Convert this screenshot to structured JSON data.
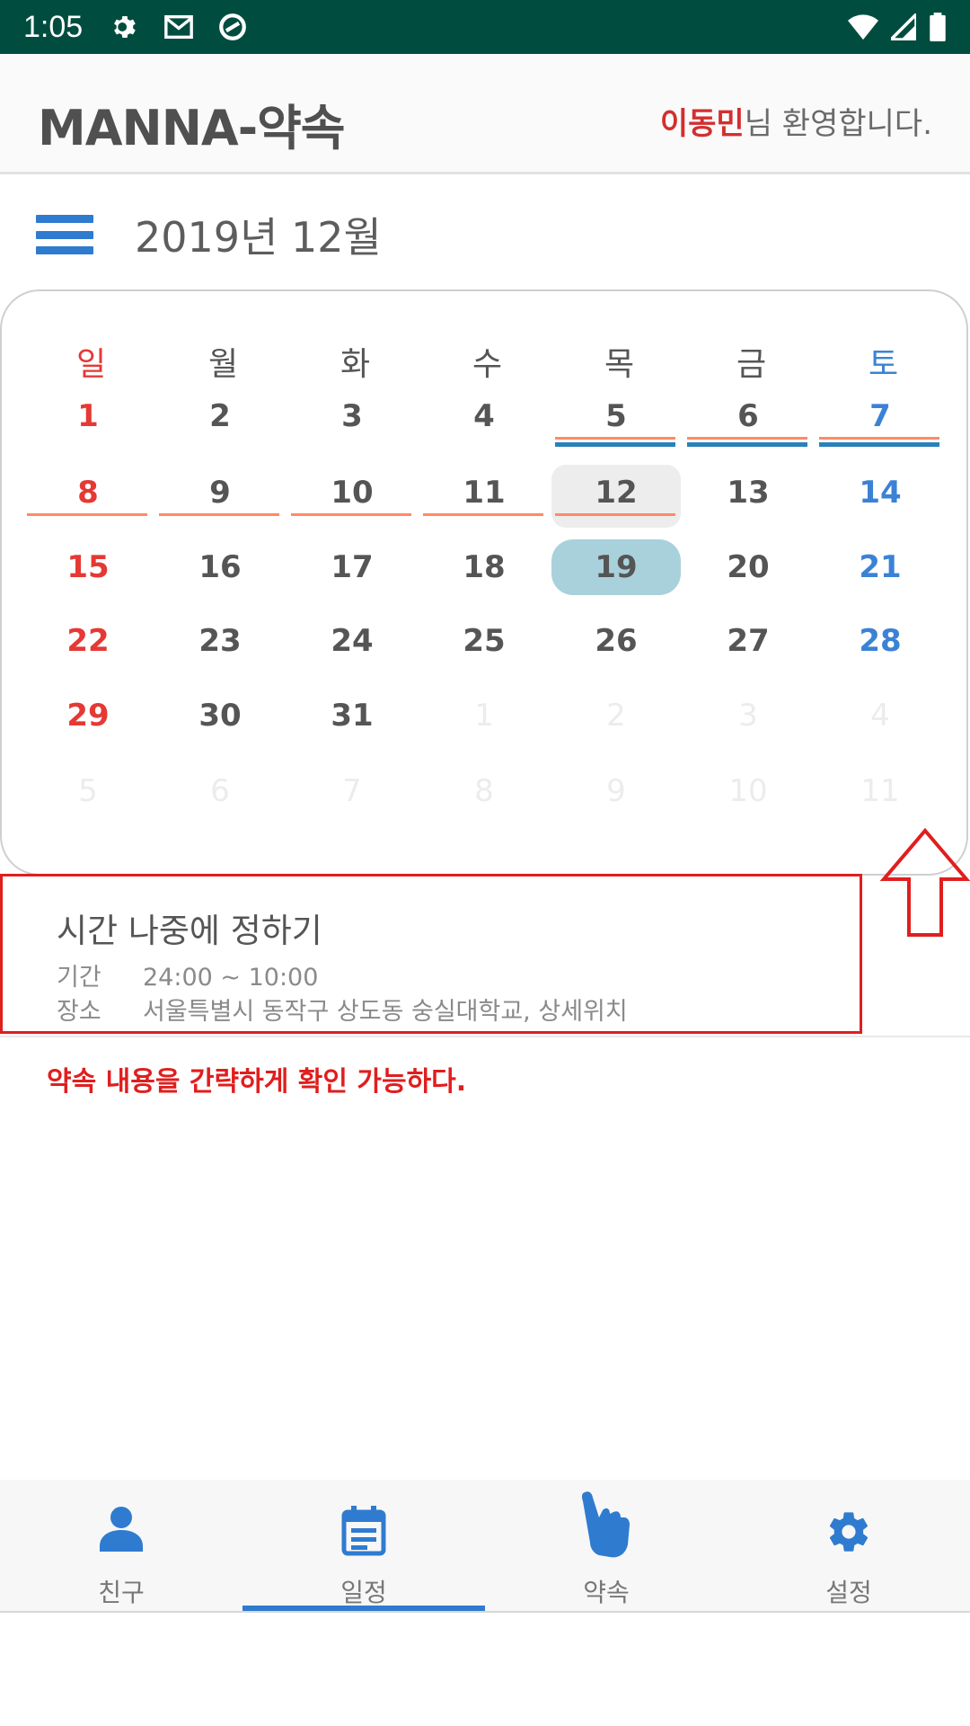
{
  "status_bar": {
    "time": "1:05"
  },
  "app_bar": {
    "title": "MANNA-약속",
    "user_name": "이동민",
    "welcome_suffix": "님 환영합니다."
  },
  "calendar": {
    "month_label": "2019년 12월",
    "weekdays": [
      "일",
      "월",
      "화",
      "수",
      "목",
      "금",
      "토"
    ],
    "weeks": [
      [
        "1",
        "2",
        "3",
        "4",
        "5",
        "6",
        "7"
      ],
      [
        "8",
        "9",
        "10",
        "11",
        "12",
        "13",
        "14"
      ],
      [
        "15",
        "16",
        "17",
        "18",
        "19",
        "20",
        "21"
      ],
      [
        "22",
        "23",
        "24",
        "25",
        "26",
        "27",
        "28"
      ],
      [
        "29",
        "30",
        "31",
        "1",
        "2",
        "3",
        "4"
      ],
      [
        "5",
        "6",
        "7",
        "8",
        "9",
        "10",
        "11"
      ]
    ],
    "today": "12",
    "selected": "19"
  },
  "event": {
    "title": "시간 나중에 정하기",
    "period_label": "기간",
    "period_value": "24:00  ~  10:00",
    "place_label": "장소",
    "place_value": "서울특별시 동작구 상도동 숭실대학교, 상세위치"
  },
  "annotation": "약속 내용을 간략하게 확인 가능하다.",
  "bottom_nav": {
    "items": [
      {
        "label": "친구",
        "icon": "person-icon"
      },
      {
        "label": "일정",
        "icon": "calendar-icon"
      },
      {
        "label": "약속",
        "icon": "pointing-hand-icon"
      },
      {
        "label": "설정",
        "icon": "gear-icon"
      }
    ],
    "active": "일정"
  },
  "colors": {
    "status_bar": "#004d40",
    "accent_blue": "#2f7bd0",
    "sunday_red": "#e53935",
    "saturday_blue": "#3b82d6",
    "highlight_red": "#e01e1e",
    "selected_day": "#a9d1dc"
  }
}
